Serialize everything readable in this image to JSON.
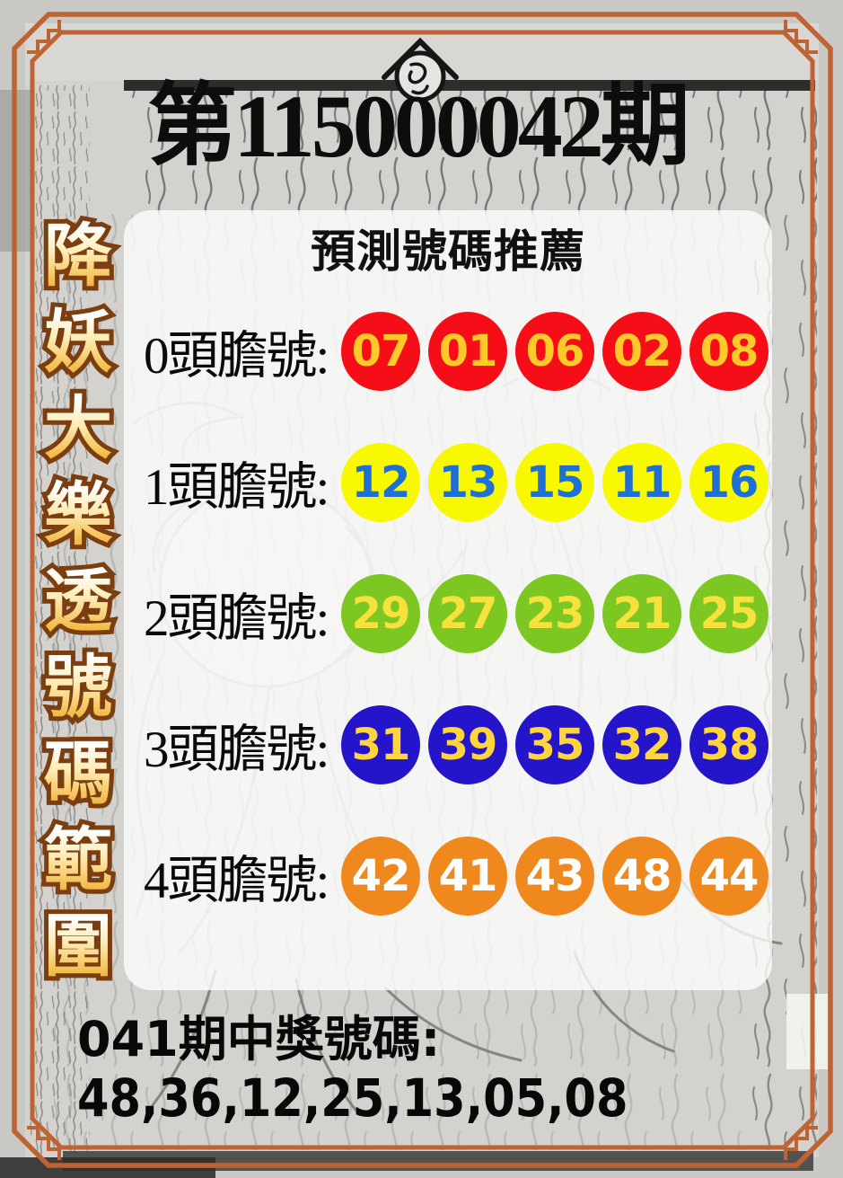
{
  "colors": {
    "frame_orange": "#bd6434",
    "gold_gradient_top": "#ffffff",
    "gold_gradient_bottom": "#f2b63c",
    "gold_outline": "#7a3e10",
    "panel_bg": "rgba(255,255,255,0.78)",
    "title_black": "#0d0d0d"
  },
  "header": {
    "crest_icon": "publisher-crest-icon",
    "issue_title": "第115000042期"
  },
  "left_column": {
    "vertical_title": "降妖大樂透號碼範圍",
    "characters": [
      "降",
      "妖",
      "大",
      "樂",
      "透",
      "號",
      "碼",
      "範",
      "圍"
    ]
  },
  "panel": {
    "subtitle_main": "預測號碼",
    "subtitle_emphasis": "推薦",
    "rows": [
      {
        "label": "0頭膽號:",
        "ball_color": "#f50d17",
        "number_color": "#ffc929",
        "numbers": [
          "07",
          "01",
          "06",
          "02",
          "08"
        ]
      },
      {
        "label": "1頭膽號:",
        "ball_color": "#f8f800",
        "number_color": "#1e70d6",
        "numbers": [
          "12",
          "13",
          "15",
          "11",
          "16"
        ]
      },
      {
        "label": "2頭膽號:",
        "ball_color": "#7cc722",
        "number_color": "#f7e13c",
        "numbers": [
          "29",
          "27",
          "23",
          "21",
          "25"
        ]
      },
      {
        "label": "3頭膽號:",
        "ball_color": "#2415cb",
        "number_color": "#ffd43c",
        "numbers": [
          "31",
          "39",
          "35",
          "32",
          "38"
        ]
      },
      {
        "label": "4頭膽號:",
        "ball_color": "#f0891d",
        "number_color": "#ffffff",
        "numbers": [
          "42",
          "41",
          "43",
          "48",
          "44"
        ]
      }
    ]
  },
  "footer": {
    "prev_draw_label": "041期中獎號碼:",
    "prev_draw_numbers": "48,36,12,25,13,05,08"
  }
}
